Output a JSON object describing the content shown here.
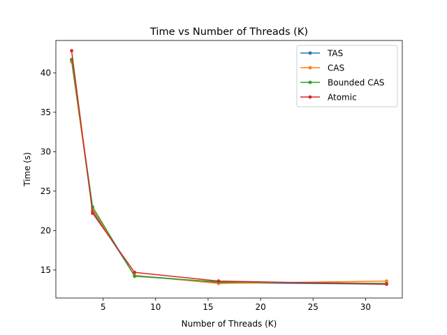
{
  "chart_data": {
    "type": "line",
    "title": "Time vs Number of Threads (K)",
    "xlabel": "Number of Threads (K)",
    "ylabel": "Time (s)",
    "xlim": [
      0.5,
      33.5
    ],
    "ylim": [
      11.45,
      44.1
    ],
    "xticks": [
      5,
      10,
      15,
      20,
      25,
      30
    ],
    "yticks": [
      15,
      20,
      25,
      30,
      35,
      40
    ],
    "grid": false,
    "legend_position": "top-right",
    "x": [
      2,
      4,
      8,
      16,
      32
    ],
    "series": [
      {
        "name": "TAS",
        "color": "#1f77b4",
        "values": [
          41.6,
          22.5,
          14.3,
          13.4,
          13.2
        ]
      },
      {
        "name": "CAS",
        "color": "#ff7f0e",
        "values": [
          41.4,
          22.7,
          14.3,
          13.3,
          13.6
        ]
      },
      {
        "name": "Bounded CAS",
        "color": "#2ca02c",
        "values": [
          41.7,
          23.0,
          14.2,
          13.5,
          13.3
        ]
      },
      {
        "name": "Atomic",
        "color": "#d62728",
        "values": [
          42.8,
          22.2,
          14.7,
          13.6,
          13.2
        ]
      }
    ]
  }
}
